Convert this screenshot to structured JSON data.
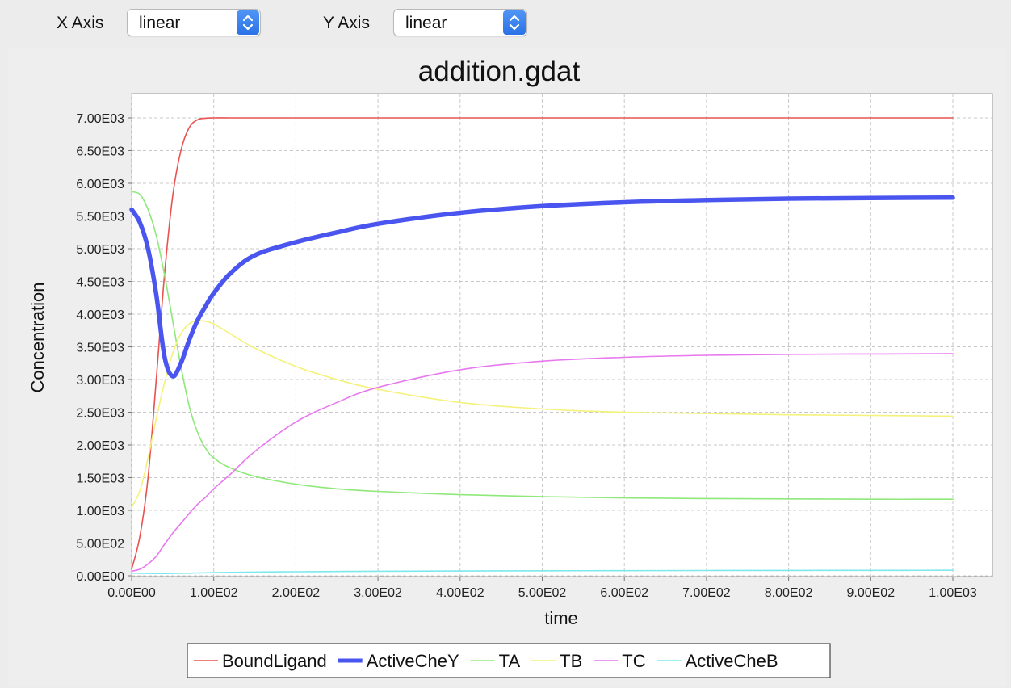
{
  "controls": {
    "x_axis_label": "X Axis",
    "x_axis_value": "linear",
    "y_axis_label": "Y Axis",
    "y_axis_value": "linear"
  },
  "chart_data": {
    "type": "line",
    "title": "addition.gdat",
    "xlabel": "time",
    "ylabel": "Concentration",
    "xlim": [
      0,
      1000
    ],
    "ylim": [
      0,
      7000
    ],
    "grid": true,
    "legend_position": "bottom",
    "x_ticks": [
      0,
      100,
      200,
      300,
      400,
      500,
      600,
      700,
      800,
      900,
      1000
    ],
    "x_tick_labels": [
      "0.00E00",
      "1.00E02",
      "2.00E02",
      "3.00E02",
      "4.00E02",
      "5.00E02",
      "6.00E02",
      "7.00E02",
      "8.00E02",
      "9.00E02",
      "1.00E03"
    ],
    "y_ticks": [
      0,
      500,
      1000,
      1500,
      2000,
      2500,
      3000,
      3500,
      4000,
      4500,
      5000,
      5500,
      6000,
      6500,
      7000
    ],
    "y_tick_labels": [
      "0.00E00",
      "5.00E02",
      "1.00E03",
      "1.50E03",
      "2.00E03",
      "2.50E03",
      "3.00E03",
      "3.50E03",
      "4.00E03",
      "4.50E03",
      "5.00E03",
      "5.50E03",
      "6.00E03",
      "6.50E03",
      "7.00E03"
    ],
    "x": [
      0,
      10,
      20,
      30,
      40,
      50,
      60,
      70,
      80,
      90,
      100,
      120,
      150,
      200,
      250,
      300,
      400,
      500,
      600,
      700,
      800,
      900,
      1000
    ],
    "series": [
      {
        "name": "BoundLigand",
        "color": "#e8534f",
        "width": 1.6,
        "values": [
          100,
          600,
          1500,
          3000,
          4600,
          5800,
          6500,
          6850,
          6970,
          6995,
          7000,
          7000,
          7000,
          7000,
          7000,
          7000,
          7000,
          7000,
          7000,
          7000,
          7000,
          7000,
          7000
        ]
      },
      {
        "name": "ActiveCheY",
        "color": "#4a55f0",
        "width": 5.5,
        "values": [
          5600,
          5400,
          5000,
          4300,
          3350,
          3050,
          3250,
          3600,
          3900,
          4120,
          4320,
          4620,
          4900,
          5100,
          5250,
          5380,
          5550,
          5650,
          5710,
          5745,
          5765,
          5775,
          5780
        ]
      },
      {
        "name": "TA",
        "color": "#8fe87a",
        "width": 1.6,
        "values": [
          5870,
          5830,
          5600,
          5200,
          4600,
          3900,
          3200,
          2600,
          2200,
          1950,
          1800,
          1650,
          1520,
          1400,
          1330,
          1290,
          1240,
          1210,
          1190,
          1180,
          1175,
          1170,
          1170
        ]
      },
      {
        "name": "TB",
        "color": "#f4f27a",
        "width": 1.6,
        "values": [
          1050,
          1300,
          1800,
          2400,
          2950,
          3400,
          3700,
          3850,
          3900,
          3890,
          3850,
          3700,
          3480,
          3200,
          3000,
          2850,
          2650,
          2550,
          2500,
          2480,
          2460,
          2450,
          2440
        ]
      },
      {
        "name": "TC",
        "color": "#e878f0",
        "width": 1.6,
        "values": [
          70,
          100,
          180,
          300,
          480,
          650,
          800,
          950,
          1090,
          1200,
          1330,
          1550,
          1900,
          2350,
          2650,
          2880,
          3150,
          3280,
          3340,
          3370,
          3385,
          3390,
          3395
        ]
      },
      {
        "name": "ActiveCheB",
        "color": "#7de8ec",
        "width": 1.6,
        "values": [
          40,
          38,
          36,
          35,
          35,
          36,
          38,
          40,
          43,
          46,
          48,
          52,
          57,
          62,
          66,
          69,
          73,
          76,
          78,
          80,
          82,
          83,
          84
        ]
      }
    ]
  }
}
